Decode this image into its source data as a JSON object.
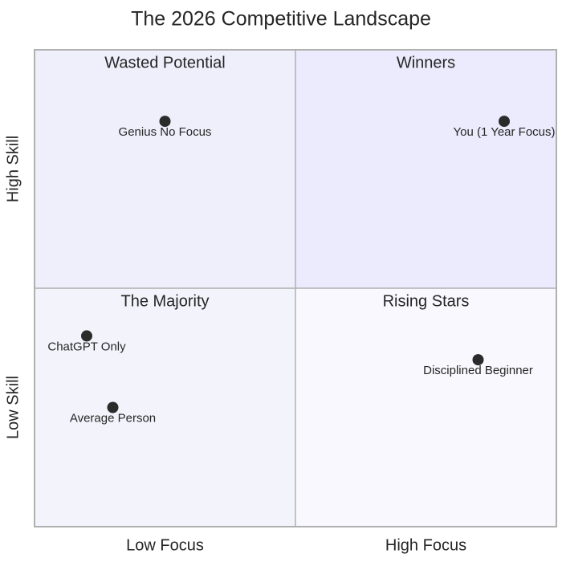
{
  "chart_data": {
    "type": "scatter",
    "title": "The 2026 Competitive Landscape",
    "xlim": [
      0,
      10
    ],
    "ylim": [
      0,
      10
    ],
    "x_labels": [
      "Low Focus",
      "High Focus"
    ],
    "y_labels": [
      "Low Skill",
      "High Skill"
    ],
    "quadrants": [
      {
        "name": "Wasted Potential",
        "color": "#efeffc"
      },
      {
        "name": "Winners",
        "color": "#ebebfd"
      },
      {
        "name": "The Majority",
        "color": "#f3f3fc"
      },
      {
        "name": "Rising Stars",
        "color": "#f8f8fe"
      }
    ],
    "point_color": "#2b2b2b",
    "point_labels": [
      "Genius No Focus",
      "You (1 Year Focus)",
      "ChatGPT Only",
      "Average Person",
      "Disciplined Beginner"
    ],
    "x": [
      2.5,
      9,
      1,
      1.5,
      8.5
    ],
    "values": [
      8.5,
      8.5,
      4,
      2.5,
      3.5
    ]
  }
}
